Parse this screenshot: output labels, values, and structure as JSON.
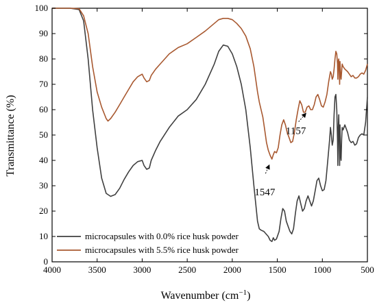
{
  "chart_data": {
    "type": "line",
    "xlabel_main": "Wavenumber (cm",
    "xlabel_exp": "−1",
    "xlabel_close": ")",
    "ylabel": "Transmittance (%)",
    "xlim": [
      4000,
      500
    ],
    "ylim": [
      0,
      100
    ],
    "x_ticks": [
      4000,
      3500,
      3000,
      2500,
      2000,
      1500,
      1000,
      500
    ],
    "y_ticks": [
      0,
      10,
      20,
      30,
      40,
      50,
      60,
      70,
      80,
      90,
      100
    ],
    "grid": false,
    "legend_position": "bottom-left",
    "series": [
      {
        "name": "microcapsules with 0.0% rice husk powder",
        "color": "#3f3f3f",
        "points": [
          [
            4000,
            100
          ],
          [
            3900,
            100
          ],
          [
            3800,
            100
          ],
          [
            3700,
            99.5
          ],
          [
            3650,
            95
          ],
          [
            3600,
            80
          ],
          [
            3550,
            60
          ],
          [
            3500,
            45
          ],
          [
            3450,
            33
          ],
          [
            3400,
            27
          ],
          [
            3350,
            25.8
          ],
          [
            3300,
            26.5
          ],
          [
            3250,
            29
          ],
          [
            3200,
            32.5
          ],
          [
            3150,
            35.5
          ],
          [
            3100,
            38
          ],
          [
            3050,
            39.5
          ],
          [
            3000,
            40
          ],
          [
            2980,
            38
          ],
          [
            2950,
            36.5
          ],
          [
            2920,
            37
          ],
          [
            2900,
            40
          ],
          [
            2850,
            44
          ],
          [
            2800,
            47.5
          ],
          [
            2700,
            53
          ],
          [
            2600,
            57.5
          ],
          [
            2500,
            60
          ],
          [
            2400,
            64
          ],
          [
            2300,
            70
          ],
          [
            2200,
            78
          ],
          [
            2150,
            83
          ],
          [
            2100,
            85.5
          ],
          [
            2050,
            85
          ],
          [
            2000,
            82
          ],
          [
            1950,
            77
          ],
          [
            1900,
            70
          ],
          [
            1850,
            60
          ],
          [
            1800,
            45
          ],
          [
            1760,
            30
          ],
          [
            1720,
            16
          ],
          [
            1700,
            13
          ],
          [
            1680,
            12.5
          ],
          [
            1650,
            12
          ],
          [
            1600,
            10
          ],
          [
            1580,
            8.5
          ],
          [
            1560,
            8
          ],
          [
            1545,
            9.5
          ],
          [
            1530,
            8.5
          ],
          [
            1510,
            9
          ],
          [
            1480,
            12
          ],
          [
            1460,
            17
          ],
          [
            1440,
            21
          ],
          [
            1420,
            20
          ],
          [
            1400,
            16
          ],
          [
            1380,
            14
          ],
          [
            1360,
            12
          ],
          [
            1340,
            11
          ],
          [
            1320,
            13
          ],
          [
            1300,
            19
          ],
          [
            1280,
            24
          ],
          [
            1260,
            26
          ],
          [
            1240,
            23
          ],
          [
            1220,
            20
          ],
          [
            1200,
            21
          ],
          [
            1180,
            24
          ],
          [
            1160,
            26
          ],
          [
            1140,
            24
          ],
          [
            1120,
            22
          ],
          [
            1100,
            24
          ],
          [
            1080,
            28
          ],
          [
            1060,
            32
          ],
          [
            1040,
            33
          ],
          [
            1020,
            30
          ],
          [
            1000,
            28
          ],
          [
            980,
            28.5
          ],
          [
            960,
            32
          ],
          [
            940,
            40
          ],
          [
            920,
            48
          ],
          [
            910,
            53
          ],
          [
            900,
            50
          ],
          [
            890,
            46
          ],
          [
            880,
            48
          ],
          [
            870,
            58
          ],
          [
            860,
            65
          ],
          [
            850,
            66
          ],
          [
            840,
            60
          ],
          [
            832,
            48
          ],
          [
            828,
            38
          ],
          [
            824,
            52
          ],
          [
            818,
            58
          ],
          [
            812,
            45
          ],
          [
            808,
            38
          ],
          [
            804,
            54
          ],
          [
            798,
            42
          ],
          [
            792,
            40
          ],
          [
            786,
            48
          ],
          [
            780,
            53
          ],
          [
            770,
            52
          ],
          [
            750,
            54
          ],
          [
            720,
            51
          ],
          [
            700,
            48
          ],
          [
            680,
            47
          ],
          [
            660,
            47.5
          ],
          [
            640,
            46
          ],
          [
            620,
            46.5
          ],
          [
            600,
            49
          ],
          [
            580,
            50
          ],
          [
            560,
            50.5
          ],
          [
            540,
            50
          ],
          [
            520,
            55
          ],
          [
            500,
            65
          ]
        ]
      },
      {
        "name": "microcapsules with 5.5% rice husk powder",
        "color": "#a8582f",
        "points": [
          [
            4000,
            100
          ],
          [
            3900,
            100
          ],
          [
            3800,
            100
          ],
          [
            3700,
            99.8
          ],
          [
            3650,
            97
          ],
          [
            3600,
            90
          ],
          [
            3550,
            77
          ],
          [
            3500,
            67
          ],
          [
            3450,
            61
          ],
          [
            3400,
            56.5
          ],
          [
            3380,
            55.5
          ],
          [
            3350,
            56.5
          ],
          [
            3300,
            59
          ],
          [
            3250,
            62
          ],
          [
            3200,
            65
          ],
          [
            3150,
            68
          ],
          [
            3100,
            71
          ],
          [
            3050,
            73
          ],
          [
            3000,
            74
          ],
          [
            2980,
            72.5
          ],
          [
            2950,
            71
          ],
          [
            2920,
            71.5
          ],
          [
            2900,
            73.5
          ],
          [
            2850,
            76
          ],
          [
            2800,
            78
          ],
          [
            2700,
            82
          ],
          [
            2600,
            84.5
          ],
          [
            2500,
            86
          ],
          [
            2400,
            88.5
          ],
          [
            2300,
            91
          ],
          [
            2200,
            94
          ],
          [
            2150,
            95.5
          ],
          [
            2100,
            96
          ],
          [
            2050,
            96
          ],
          [
            2000,
            95.5
          ],
          [
            1950,
            94
          ],
          [
            1900,
            92
          ],
          [
            1850,
            89
          ],
          [
            1800,
            84
          ],
          [
            1760,
            77
          ],
          [
            1720,
            67
          ],
          [
            1700,
            63
          ],
          [
            1680,
            60
          ],
          [
            1660,
            57
          ],
          [
            1640,
            52
          ],
          [
            1620,
            47
          ],
          [
            1600,
            44
          ],
          [
            1580,
            42
          ],
          [
            1560,
            40.5
          ],
          [
            1547,
            42
          ],
          [
            1530,
            43.5
          ],
          [
            1510,
            43
          ],
          [
            1490,
            45
          ],
          [
            1470,
            50
          ],
          [
            1450,
            54
          ],
          [
            1430,
            56
          ],
          [
            1410,
            54
          ],
          [
            1390,
            51
          ],
          [
            1370,
            49
          ],
          [
            1350,
            47
          ],
          [
            1330,
            47.5
          ],
          [
            1310,
            51
          ],
          [
            1290,
            56
          ],
          [
            1270,
            60
          ],
          [
            1250,
            63.5
          ],
          [
            1230,
            62
          ],
          [
            1210,
            59
          ],
          [
            1190,
            59
          ],
          [
            1170,
            61
          ],
          [
            1150,
            61.5
          ],
          [
            1130,
            60
          ],
          [
            1110,
            60
          ],
          [
            1090,
            62
          ],
          [
            1070,
            65
          ],
          [
            1050,
            66
          ],
          [
            1030,
            64
          ],
          [
            1010,
            61.5
          ],
          [
            990,
            61
          ],
          [
            970,
            63
          ],
          [
            950,
            66
          ],
          [
            930,
            71
          ],
          [
            910,
            75
          ],
          [
            900,
            74
          ],
          [
            890,
            72
          ],
          [
            880,
            73
          ],
          [
            870,
            76
          ],
          [
            860,
            80
          ],
          [
            850,
            83
          ],
          [
            840,
            82
          ],
          [
            832,
            78
          ],
          [
            828,
            72
          ],
          [
            824,
            79
          ],
          [
            818,
            80
          ],
          [
            812,
            74
          ],
          [
            808,
            70
          ],
          [
            804,
            79
          ],
          [
            798,
            74
          ],
          [
            792,
            72
          ],
          [
            786,
            75
          ],
          [
            780,
            78
          ],
          [
            770,
            77
          ],
          [
            750,
            76
          ],
          [
            720,
            75
          ],
          [
            700,
            74
          ],
          [
            680,
            73
          ],
          [
            660,
            73.5
          ],
          [
            640,
            72.5
          ],
          [
            620,
            72.5
          ],
          [
            600,
            73
          ],
          [
            580,
            74
          ],
          [
            560,
            74.5
          ],
          [
            540,
            74
          ],
          [
            520,
            75.5
          ],
          [
            500,
            78
          ]
        ]
      }
    ],
    "annotations": [
      {
        "label": "1547",
        "x": 1547,
        "y": 30.5,
        "arrow_to": 39
      },
      {
        "label": "1157",
        "x": 1157,
        "y": 52,
        "arrow_to": 60
      }
    ]
  }
}
